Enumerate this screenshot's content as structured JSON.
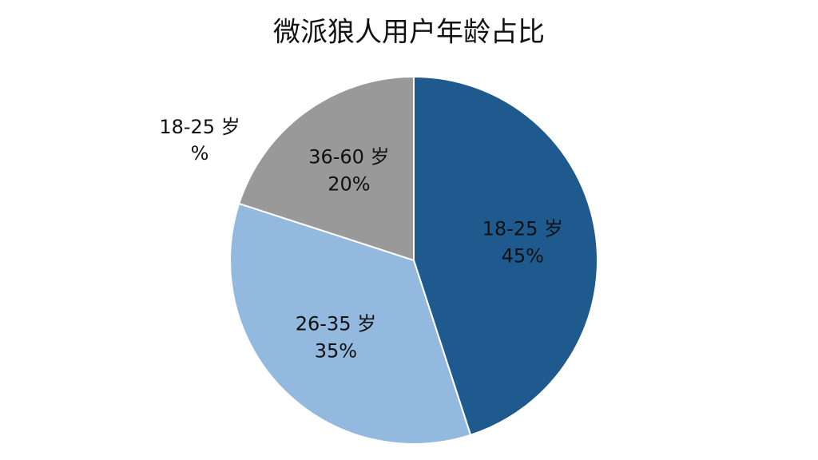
{
  "chart_data": {
    "type": "pie",
    "title": "微派狼人用户年龄占比",
    "categories": [
      "18-25 岁",
      "26-35 岁",
      "36-60 岁"
    ],
    "values": [
      45,
      35,
      20
    ],
    "value_labels": [
      "45%",
      "35%",
      "20%"
    ],
    "colors": [
      "#1f5a8f",
      "#93b9df",
      "#999999"
    ],
    "label_colors": [
      "#ffffff",
      "#111111",
      "#111111"
    ],
    "annotation": [
      "18-25 岁",
      "%"
    ]
  }
}
